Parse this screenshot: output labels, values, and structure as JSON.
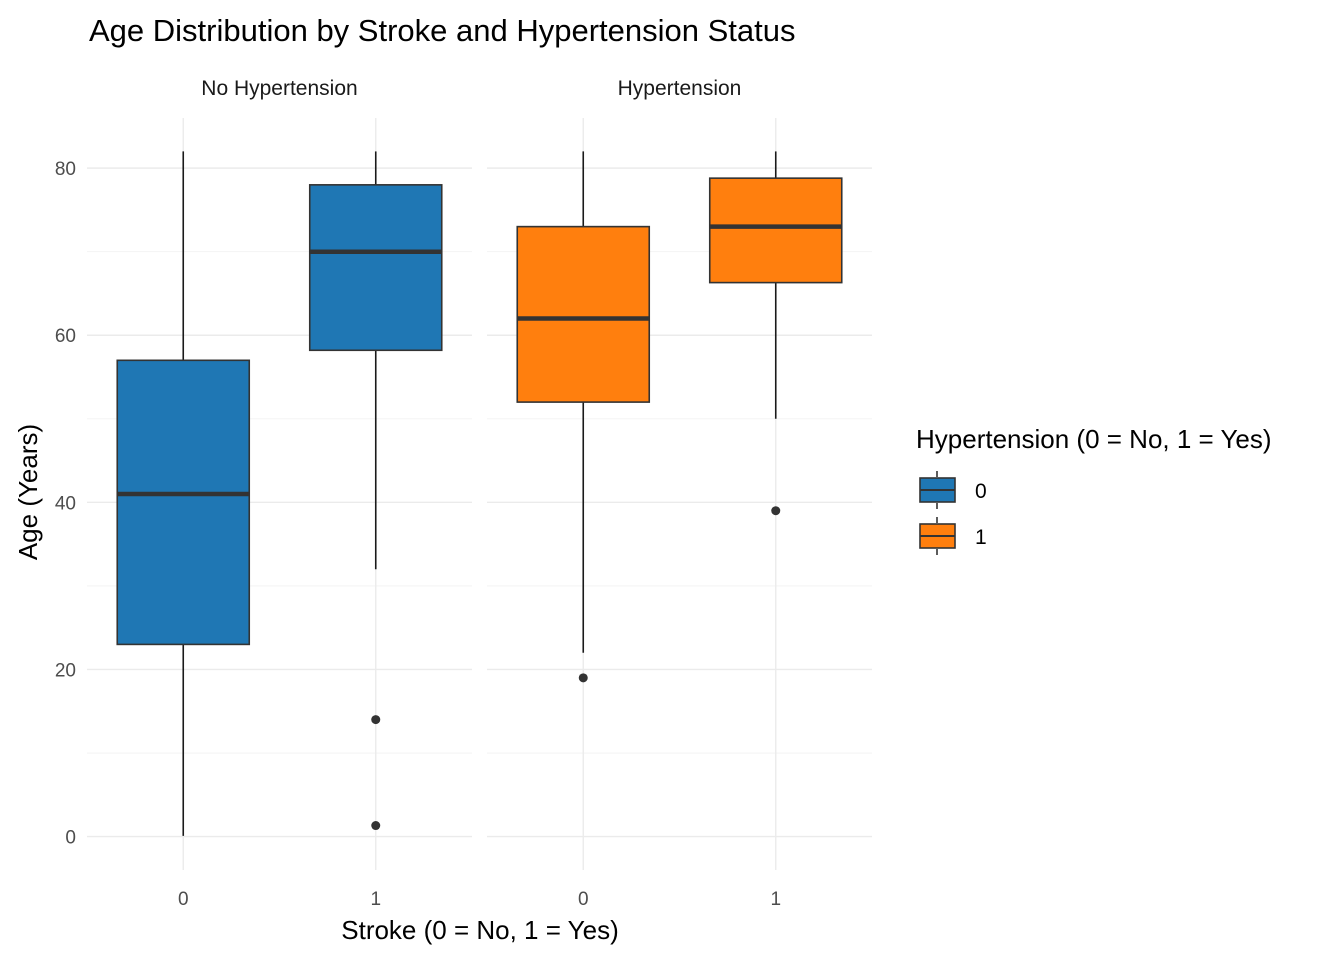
{
  "chart_data": {
    "type": "boxplot",
    "title": "Age Distribution by Stroke and Hypertension Status",
    "xlabel": "Stroke (0 = No, 1 = Yes)",
    "ylabel": "Age (Years)",
    "ylim": [
      -4,
      86
    ],
    "yticks": [
      0,
      20,
      40,
      60,
      80
    ],
    "categories": [
      "0",
      "1"
    ],
    "grid": true,
    "legend": {
      "title": "Hypertension (0 = No, 1 = Yes)",
      "placement": "right",
      "entries": [
        {
          "label": "0",
          "color": "#1f77b4"
        },
        {
          "label": "1",
          "color": "#ff7f0e"
        }
      ]
    },
    "panels": [
      {
        "label": "No Hypertension",
        "color": "#1f77b4",
        "boxes": [
          {
            "category": "0",
            "min": 0.08,
            "q1": 23,
            "median": 41,
            "q3": 57,
            "max": 82,
            "outliers": []
          },
          {
            "category": "1",
            "min": 32,
            "q1": 58.2,
            "median": 70,
            "q3": 78,
            "max": 82,
            "outliers": [
              14,
              1.32
            ]
          }
        ]
      },
      {
        "label": "Hypertension",
        "color": "#ff7f0e",
        "boxes": [
          {
            "category": "0",
            "min": 22,
            "q1": 52,
            "median": 62,
            "q3": 73,
            "max": 82,
            "outliers": [
              19
            ]
          },
          {
            "category": "1",
            "min": 50,
            "q1": 66.3,
            "median": 73,
            "q3": 78.8,
            "max": 82,
            "outliers": [
              39
            ]
          }
        ]
      }
    ]
  }
}
